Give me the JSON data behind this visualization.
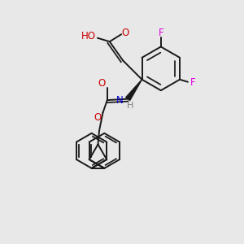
{
  "bg_color": "#e8e8e8",
  "bond_color": "#1a1a1a",
  "bond_width": 1.4,
  "F_color": "#e000e0",
  "O_color": "#cc0000",
  "N_color": "#0000cc",
  "H_color": "#808080",
  "fig_width": 3.0,
  "fig_height": 3.0,
  "dpi": 100,
  "xlim": [
    0,
    10
  ],
  "ylim": [
    0,
    10
  ]
}
